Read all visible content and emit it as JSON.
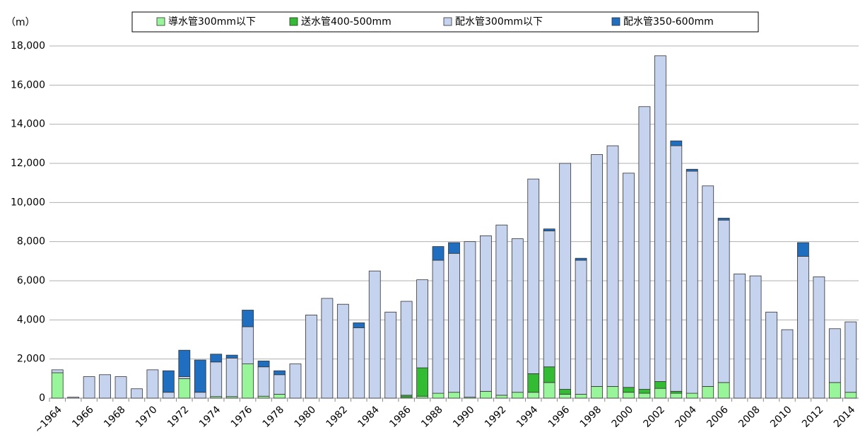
{
  "chart_data": {
    "type": "stacked-bar",
    "y_unit": "（m）",
    "categories": [
      "~1964",
      null,
      "1966",
      null,
      "1968",
      null,
      "1970",
      null,
      "1972",
      null,
      "1974",
      null,
      "1976",
      null,
      "1978",
      null,
      "1980",
      null,
      "1982",
      null,
      "1984",
      null,
      "1986",
      null,
      "1988",
      null,
      "1990",
      null,
      "1992",
      null,
      "1994",
      null,
      "1996",
      null,
      "1998",
      null,
      "2000",
      null,
      "2002",
      null,
      "2004",
      null,
      "2006",
      null,
      "2008",
      null,
      "2010",
      null,
      "2012",
      null,
      "2014"
    ],
    "series": [
      {
        "name": "導水管300mm以下",
        "color": "#99f599",
        "values": [
          1300,
          0,
          0,
          0,
          0,
          0,
          0,
          0,
          1000,
          0,
          80,
          80,
          1750,
          100,
          200,
          0,
          0,
          0,
          0,
          0,
          0,
          0,
          50,
          100,
          250,
          300,
          50,
          350,
          150,
          300,
          300,
          800,
          200,
          200,
          600,
          600,
          300,
          250,
          500,
          250,
          250,
          600,
          800,
          0,
          0,
          0,
          0,
          0,
          0,
          800,
          300
        ]
      },
      {
        "name": "送水管400-500mm",
        "color": "#33bb33",
        "values": [
          0,
          0,
          0,
          0,
          0,
          0,
          0,
          0,
          0,
          0,
          0,
          0,
          0,
          0,
          0,
          0,
          0,
          0,
          0,
          0,
          0,
          0,
          100,
          1450,
          0,
          0,
          0,
          0,
          0,
          0,
          950,
          800,
          250,
          0,
          0,
          0,
          250,
          200,
          350,
          100,
          0,
          0,
          0,
          0,
          0,
          0,
          0,
          0,
          0,
          0,
          0
        ]
      },
      {
        "name": "配水管300mm以下",
        "color": "#c6d3ee",
        "values": [
          150,
          50,
          1100,
          1200,
          1100,
          480,
          1450,
          300,
          100,
          300,
          1770,
          1970,
          1900,
          1500,
          1000,
          1750,
          4250,
          5100,
          4800,
          3600,
          6500,
          4400,
          4800,
          4500,
          6800,
          7100,
          7950,
          7950,
          8700,
          7850,
          9950,
          6950,
          11550,
          6850,
          11850,
          12300,
          10950,
          14450,
          16650,
          12550,
          11350,
          10250,
          8300,
          6350,
          6250,
          4400,
          3500,
          7250,
          6200,
          2750,
          3600
        ]
      },
      {
        "name": "配水管350-600mm",
        "color": "#1f6ebf",
        "values": [
          0,
          0,
          0,
          0,
          0,
          0,
          0,
          1100,
          1350,
          1650,
          400,
          150,
          850,
          300,
          200,
          0,
          0,
          0,
          0,
          250,
          0,
          0,
          0,
          0,
          700,
          550,
          0,
          0,
          0,
          0,
          0,
          100,
          0,
          100,
          0,
          0,
          0,
          0,
          0,
          250,
          100,
          0,
          100,
          0,
          0,
          0,
          0,
          700,
          0,
          0,
          0
        ]
      }
    ],
    "ylim": [
      0,
      18000
    ],
    "yticks": [
      0,
      {
        "value": 2000,
        "label": "2,000"
      },
      {
        "value": 4000,
        "label": "4,000"
      },
      {
        "value": 6000,
        "label": "6,000"
      },
      {
        "value": 8000,
        "label": "8,000"
      },
      {
        "value": 10000,
        "label": "10,000"
      },
      {
        "value": 12000,
        "label": "12,000"
      },
      {
        "value": 14000,
        "label": "14,000"
      },
      {
        "value": 16000,
        "label": "16,000"
      },
      {
        "value": 18000,
        "label": "18,000"
      }
    ],
    "grid": true
  }
}
